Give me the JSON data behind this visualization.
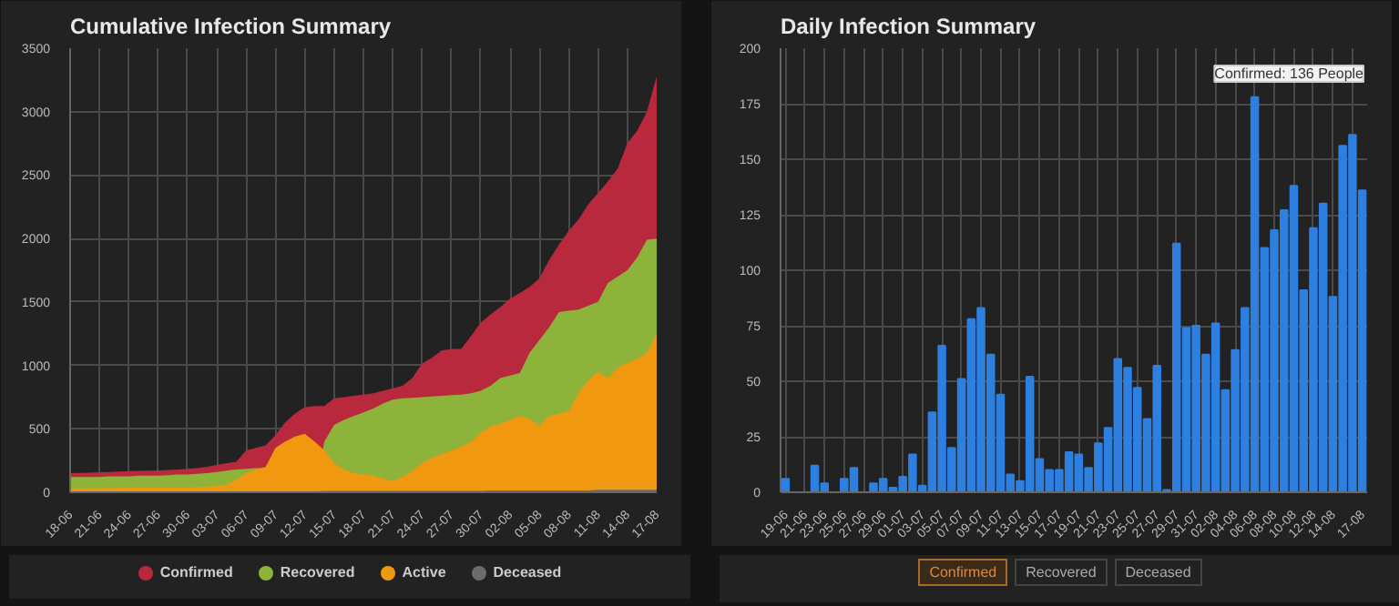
{
  "chart_data": [
    {
      "type": "area",
      "title": "Cumulative Infection Summary",
      "categories": [
        "18-06",
        null,
        null,
        "21-06",
        null,
        null,
        "24-06",
        null,
        null,
        "27-06",
        null,
        null,
        "30-06",
        null,
        null,
        "03-07",
        null,
        null,
        "06-07",
        null,
        null,
        "09-07",
        null,
        null,
        "12-07",
        null,
        null,
        "15-07",
        null,
        null,
        "18-07",
        null,
        null,
        "21-07",
        null,
        null,
        "24-07",
        null,
        null,
        "27-07",
        null,
        null,
        "30-07",
        null,
        null,
        "02-08",
        null,
        null,
        "05-08",
        null,
        null,
        "08-08",
        null,
        null,
        "11-08",
        null,
        null,
        "14-08",
        null,
        null,
        "17-08"
      ],
      "series": [
        {
          "name": "Confirmed",
          "color": "#b8293d",
          "values": [
            150,
            152,
            155,
            158,
            160,
            163,
            166,
            168,
            170,
            173,
            176,
            180,
            185,
            190,
            200,
            215,
            230,
            240,
            330,
            350,
            370,
            450,
            550,
            620,
            670,
            680,
            680,
            740,
            750,
            760,
            770,
            780,
            800,
            820,
            840,
            900,
            1015,
            1060,
            1117,
            1130,
            1130,
            1230,
            1337,
            1400,
            1460,
            1525,
            1570,
            1620,
            1686,
            1830,
            1950,
            2060,
            2150,
            2270,
            2357,
            2450,
            2550,
            2750,
            2850,
            3000,
            3280
          ]
        },
        {
          "name": "Recovered",
          "color": "#8db33a",
          "values": [
            120,
            120,
            120,
            120,
            125,
            125,
            125,
            130,
            130,
            130,
            135,
            140,
            140,
            145,
            150,
            160,
            170,
            180,
            185,
            190,
            190,
            null,
            null,
            null,
            null,
            null,
            400,
            530,
            570,
            600,
            630,
            660,
            700,
            730,
            740,
            745,
            750,
            755,
            760,
            765,
            770,
            780,
            800,
            840,
            900,
            920,
            940,
            1100,
            1200,
            1300,
            1420,
            1430,
            1440,
            1470,
            1500,
            1650,
            1700,
            1750,
            1850,
            1990,
            2000
          ]
        },
        {
          "name": "Active",
          "color": "#f0980f",
          "values": [
            30,
            30,
            31,
            32,
            33,
            34,
            35,
            36,
            36,
            37,
            37,
            38,
            40,
            40,
            45,
            50,
            60,
            100,
            150,
            180,
            200,
            350,
            400,
            440,
            460,
            400,
            330,
            230,
            180,
            150,
            140,
            130,
            110,
            90,
            120,
            170,
            230,
            270,
            300,
            330,
            360,
            400,
            470,
            520,
            540,
            570,
            600,
            580,
            520,
            600,
            620,
            640,
            780,
            880,
            950,
            900,
            980,
            1020,
            1050,
            1100,
            1250
          ]
        },
        {
          "name": "Deceased",
          "color": "#6b6b70",
          "values": [
            5,
            5,
            5,
            5,
            5,
            5,
            5,
            5,
            5,
            5,
            5,
            5,
            5,
            5,
            5,
            5,
            5,
            5,
            5,
            5,
            5,
            5,
            5,
            5,
            5,
            5,
            10,
            10,
            10,
            10,
            10,
            10,
            10,
            10,
            10,
            10,
            10,
            10,
            10,
            10,
            10,
            10,
            10,
            15,
            15,
            15,
            15,
            15,
            15,
            15,
            15,
            15,
            15,
            15,
            20,
            20,
            20,
            20,
            20,
            20,
            20
          ]
        }
      ],
      "ylim": [
        0,
        3500
      ],
      "yticks": [
        0,
        500,
        1000,
        1500,
        2000,
        2500,
        3000,
        3500
      ],
      "grid": true,
      "legend": "bottom"
    },
    {
      "type": "bar",
      "title": "Daily Infection Summary",
      "categories": [
        "19-06",
        null,
        "21-06",
        null,
        "23-06",
        null,
        "25-06",
        null,
        "27-06",
        null,
        "29-06",
        null,
        "01-07",
        null,
        "03-07",
        null,
        "05-07",
        null,
        "07-07",
        null,
        "09-07",
        null,
        "11-07",
        null,
        "13-07",
        null,
        "15-07",
        null,
        "17-07",
        null,
        "19-07",
        null,
        "21-07",
        null,
        "23-07",
        null,
        "25-07",
        null,
        "27-07",
        null,
        "29-07",
        null,
        "31-07",
        null,
        "02-08",
        null,
        "04-08",
        null,
        "06-08",
        null,
        "08-08",
        null,
        "10-08",
        null,
        "12-08",
        null,
        "14-08",
        null,
        null,
        "17-08"
      ],
      "values": [
        6,
        0,
        0,
        12,
        4,
        0,
        6,
        11,
        0,
        4,
        6,
        2,
        7,
        17,
        3,
        36,
        66,
        20,
        51,
        78,
        83,
        62,
        44,
        8,
        5,
        52,
        15,
        10,
        10,
        18,
        17,
        11,
        22,
        29,
        60,
        56,
        47,
        33,
        57,
        1,
        112,
        74,
        75,
        62,
        76,
        46,
        64,
        83,
        178,
        110,
        118,
        127,
        138,
        91,
        119,
        130,
        88,
        156,
        161,
        136
      ],
      "color": "#2d7fe0",
      "ylim": [
        0,
        200
      ],
      "yticks": [
        0,
        25,
        50,
        75,
        100,
        125,
        150,
        175,
        200
      ],
      "grid": true,
      "annotations": [
        "Confirmed: 136 People",
        "Confirmed",
        "Recovered",
        "Deceased"
      ]
    }
  ]
}
